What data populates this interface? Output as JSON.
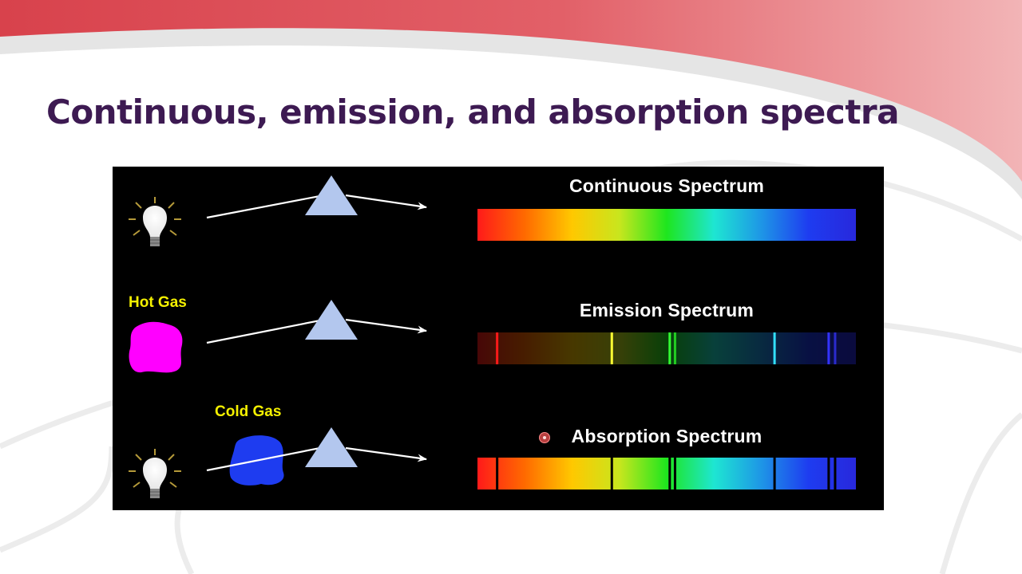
{
  "slide": {
    "title": "Continuous, emission, and absorption spectra",
    "theme_colors": {
      "title": "#3d1a52",
      "header_band": "#d94a52",
      "diagram_background": "#000000",
      "gas_label": "#f4f000",
      "prism": "#b3c7ee",
      "light_ray": "#ffffff"
    }
  },
  "diagram": {
    "rows": [
      {
        "id": "continuous",
        "source": "light-bulb",
        "source_label": "",
        "spectrum_title": "Continuous Spectrum",
        "spectrum_style": "full",
        "lines": []
      },
      {
        "id": "emission",
        "source": "hot-gas-blob",
        "source_label": "Hot Gas",
        "source_color": "#ff00ff",
        "spectrum_title": "Emission Spectrum",
        "spectrum_style": "dim",
        "lines": [
          {
            "pos": 0.052,
            "color": "#ff1a1a"
          },
          {
            "pos": 0.355,
            "color": "#ffff33"
          },
          {
            "pos": 0.508,
            "color": "#33ff33"
          },
          {
            "pos": 0.522,
            "color": "#22cc22"
          },
          {
            "pos": 0.785,
            "color": "#33e0ff"
          },
          {
            "pos": 0.928,
            "color": "#3333ff"
          },
          {
            "pos": 0.945,
            "color": "#2a2acc"
          }
        ]
      },
      {
        "id": "absorption",
        "source": "light-bulb",
        "source_label": "Cold Gas",
        "source_color": "#1e3cf0",
        "spectrum_title": "Absorption Spectrum",
        "spectrum_style": "full",
        "lines": [
          {
            "pos": 0.052,
            "color": "#000000"
          },
          {
            "pos": 0.355,
            "color": "#000000"
          },
          {
            "pos": 0.508,
            "color": "#000000"
          },
          {
            "pos": 0.522,
            "color": "#000000"
          },
          {
            "pos": 0.785,
            "color": "#000000"
          },
          {
            "pos": 0.928,
            "color": "#000000"
          },
          {
            "pos": 0.945,
            "color": "#000000"
          }
        ]
      }
    ],
    "spectrum_gradient": [
      "#ff1a1a",
      "#ff6a00",
      "#ffc800",
      "#c8e61e",
      "#1ee61e",
      "#1ee6d2",
      "#1e96e6",
      "#1e3cf0",
      "#2828dc"
    ]
  }
}
